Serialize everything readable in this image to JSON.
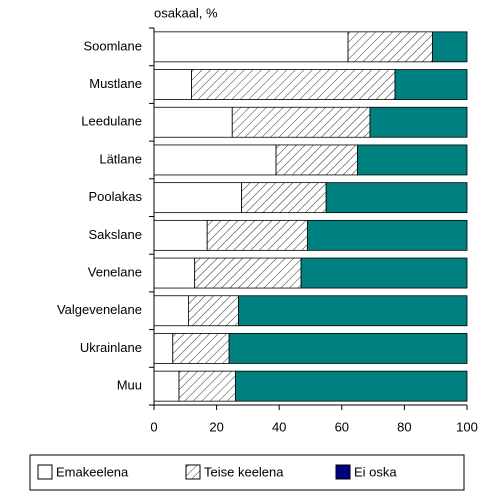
{
  "chart_data": {
    "type": "stacked-barh",
    "axis_title": "osakaal, %",
    "categories": [
      "Soomlane",
      "Mustlane",
      "Leedulane",
      "Lätlane",
      "Poolakas",
      "Sakslane",
      "Venelane",
      "Valgevenelane",
      "Ukrainlane",
      "Muu"
    ],
    "series": [
      {
        "name": "Emakeelena",
        "color": "#ffffff",
        "pattern": "solid",
        "values": [
          62,
          12,
          25,
          39,
          28,
          17,
          13,
          11,
          6,
          8
        ]
      },
      {
        "name": "Teise keelena",
        "color": "#ffffff",
        "pattern": "hatch",
        "values": [
          27,
          65,
          44,
          26,
          27,
          32,
          34,
          16,
          18,
          18
        ]
      },
      {
        "name": "Ei oska",
        "color": "#008080",
        "legend_color": "#000080",
        "pattern": "solid",
        "values": [
          11,
          23,
          31,
          35,
          45,
          51,
          53,
          73,
          76,
          74
        ]
      }
    ],
    "xlim": [
      0,
      100
    ],
    "xticks": [
      0,
      20,
      40,
      60,
      80,
      100
    ],
    "legend": "bottom"
  }
}
